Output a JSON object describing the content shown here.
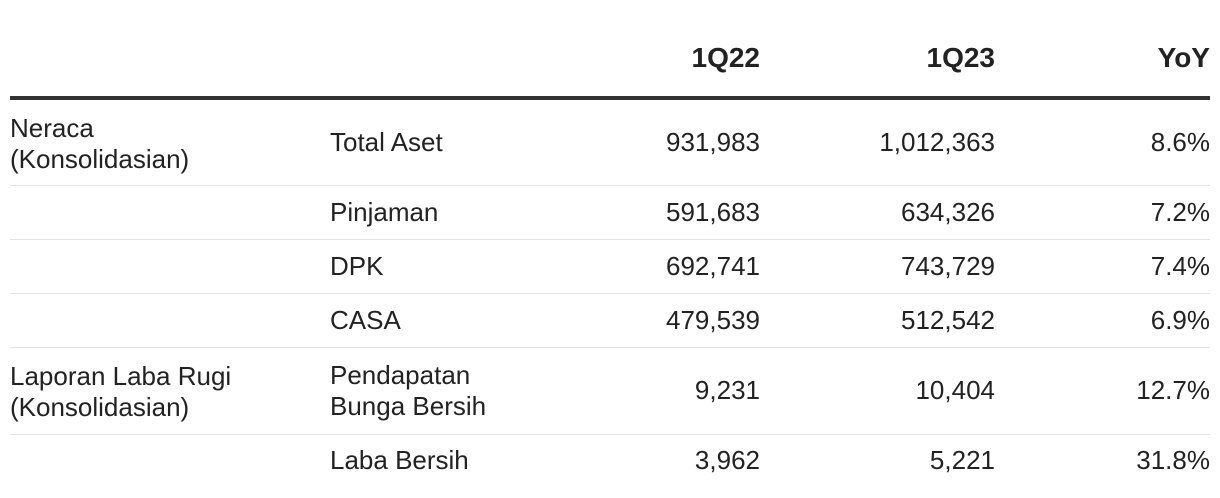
{
  "header": {
    "col_category": "",
    "col_metric": "",
    "col_1q22": "1Q22",
    "col_1q23": "1Q23",
    "col_yoy": "YoY"
  },
  "rows": [
    {
      "category": "Neraca\n(Konsolidasian)",
      "metric": "Total Aset",
      "q1_22": "931,983",
      "q1_23": "1,012,363",
      "yoy": "8.6%"
    },
    {
      "category": "",
      "metric": "Pinjaman",
      "q1_22": "591,683",
      "q1_23": "634,326",
      "yoy": "7.2%"
    },
    {
      "category": "",
      "metric": "DPK",
      "q1_22": "692,741",
      "q1_23": "743,729",
      "yoy": "7.4%"
    },
    {
      "category": "",
      "metric": "CASA",
      "q1_22": "479,539",
      "q1_23": "512,542",
      "yoy": "6.9%"
    },
    {
      "category": "Laporan Laba Rugi\n(Konsolidasian)",
      "metric": "Pendapatan\nBunga Bersih",
      "q1_22": "9,231",
      "q1_23": "10,404",
      "yoy": "12.7%"
    },
    {
      "category": "",
      "metric": "Laba Bersih",
      "q1_22": "3,962",
      "q1_23": "5,221",
      "yoy": "31.8%"
    }
  ]
}
